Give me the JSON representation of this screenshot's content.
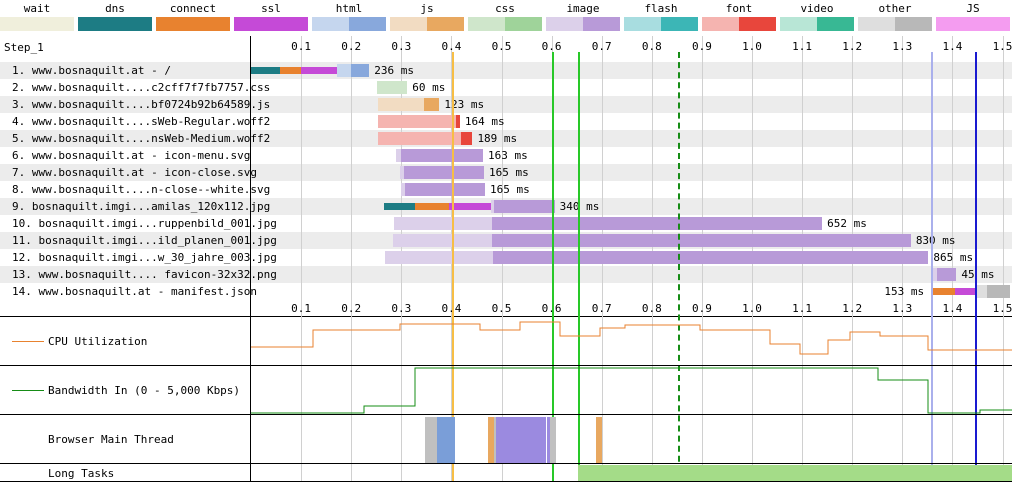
{
  "legend": [
    {
      "label": "wait",
      "c1": "#f0efdc",
      "c2": "#f0efdc"
    },
    {
      "label": "dns",
      "c1": "#1d7c84",
      "c2": "#1d7c84"
    },
    {
      "label": "connect",
      "c1": "#e8822f",
      "c2": "#e8822f"
    },
    {
      "label": "ssl",
      "c1": "#c54ad7",
      "c2": "#c54ad7"
    },
    {
      "label": "html",
      "c1": "#c5d6ee",
      "c2": "#88a8dc"
    },
    {
      "label": "js",
      "c1": "#f2dcc2",
      "c2": "#e8a860"
    },
    {
      "label": "css",
      "c1": "#cfe6cb",
      "c2": "#9fd39a"
    },
    {
      "label": "image",
      "c1": "#dcd0ea",
      "c2": "#b89ad8"
    },
    {
      "label": "flash",
      "c1": "#a8dde0",
      "c2": "#3cb6b6"
    },
    {
      "label": "font",
      "c1": "#f5b4b0",
      "c2": "#e8463c"
    },
    {
      "label": "video",
      "c1": "#b8e6d6",
      "c2": "#38b894"
    },
    {
      "label": "other",
      "c1": "#dedede",
      "c2": "#b8b8b8"
    },
    {
      "label": "JS Execution",
      "c1": "#f49cf0",
      "c2": "#f49cf0"
    }
  ],
  "step_label": "Step_1",
  "ticks": [
    "0.1",
    "0.2",
    "0.3",
    "0.4",
    "0.5",
    "0.6",
    "0.7",
    "0.8",
    "0.9",
    "1.0",
    "1.1",
    "1.2",
    "1.3",
    "1.4",
    "1.5"
  ],
  "requests": [
    {
      "label": "1. www.bosnaquilt.at - /",
      "ms": "236 ms",
      "start": 0.0,
      "dns": 0.058,
      "connect": 0.1,
      "ssl": 0.172,
      "ttfb": 0.2,
      "end": 0.236,
      "type": "html"
    },
    {
      "label": "2. www.bosnaquilt....c2cff7f7fb7757.css",
      "ms": "60 ms",
      "start": 0.252,
      "ttfb": 0.312,
      "end": 0.312,
      "type": "css"
    },
    {
      "label": "3. www.bosnaquilt....bf0724b92b64589.js",
      "ms": "123 ms",
      "start": 0.253,
      "ttfb": 0.345,
      "end": 0.376,
      "type": "js"
    },
    {
      "label": "4. www.bosnaquilt....sWeb-Regular.woff2",
      "ms": "164 ms",
      "start": 0.253,
      "ttfb": 0.41,
      "end": 0.417,
      "type": "font"
    },
    {
      "label": "5. www.bosnaquilt....nsWeb-Medium.woff2",
      "ms": "189 ms",
      "start": 0.253,
      "ttfb": 0.42,
      "end": 0.442,
      "type": "font"
    },
    {
      "label": "6. www.bosnaquilt.at - icon-menu.svg",
      "ms": "163 ms",
      "start": 0.29,
      "ttfb": 0.3,
      "end": 0.463,
      "type": "image"
    },
    {
      "label": "7. www.bosnaquilt.at - icon-close.svg",
      "ms": "165 ms",
      "start": 0.298,
      "ttfb": 0.305,
      "end": 0.465,
      "type": "image"
    },
    {
      "label": "8. www.bosnaquilt....n-close--white.svg",
      "ms": "165 ms",
      "start": 0.3,
      "ttfb": 0.307,
      "end": 0.467,
      "type": "image"
    },
    {
      "label": "9. bosnaquilt.imgi...amilas_120x112.jpg",
      "ms": "340 ms",
      "start": 0.266,
      "dns": 0.327,
      "connect": 0.396,
      "ssl": 0.48,
      "ttfb": 0.485,
      "end": 0.606,
      "type": "image"
    },
    {
      "label": "10. bosnaquilt.imgi...ruppenbild_001.jpg",
      "ms": "652 ms",
      "start": 0.286,
      "ttfb": 0.482,
      "end": 1.14,
      "type": "image"
    },
    {
      "label": "11. bosnaquilt.imgi...ild_planen_001.jpg",
      "ms": "830 ms",
      "start": 0.284,
      "ttfb": 0.482,
      "end": 1.317,
      "type": "image"
    },
    {
      "label": "12. bosnaquilt.imgi...w_30_jahre_003.jpg",
      "ms": "865 ms",
      "start": 0.268,
      "ttfb": 0.483,
      "end": 1.352,
      "type": "image"
    },
    {
      "label": "13. www.bosnaquilt.... favicon-32x32.png",
      "ms": "45 ms",
      "start": 1.362,
      "ttfb": 1.37,
      "end": 1.408,
      "type": "image"
    },
    {
      "label": "14. www.bosnaquilt.at - manifest.json",
      "ms": "153 ms",
      "start": 1.36,
      "dns": 1.362,
      "connect": 1.405,
      "ssl": 1.445,
      "ttfb": 1.47,
      "end": 1.515,
      "type": "other"
    }
  ],
  "markers": [
    {
      "time": 0.402,
      "color": "#f7be45",
      "style": "solid"
    },
    {
      "time": 0.6,
      "color": "#28c828",
      "style": "solid"
    },
    {
      "time": 0.652,
      "color": "#28c828",
      "style": "solid"
    },
    {
      "time": 0.852,
      "color": "#168c16",
      "style": "dashed"
    },
    {
      "time": 1.358,
      "color": "#aab0ec",
      "style": "solid"
    },
    {
      "time": 1.446,
      "color": "#1a1ad0",
      "style": "solid"
    }
  ],
  "graphs": {
    "cpu": "CPU Utilization",
    "bandwidth": "Bandwidth In (0 - 5,000 Kbps)",
    "main_thread": "Browser Main Thread",
    "long_tasks": "Long Tasks"
  },
  "colors": {
    "cpu_line": "#e8822f",
    "bw_line": "#168c16",
    "long_task": "#a4dc88",
    "grid": "#d0d0d0",
    "stripe": "#ececec"
  }
}
